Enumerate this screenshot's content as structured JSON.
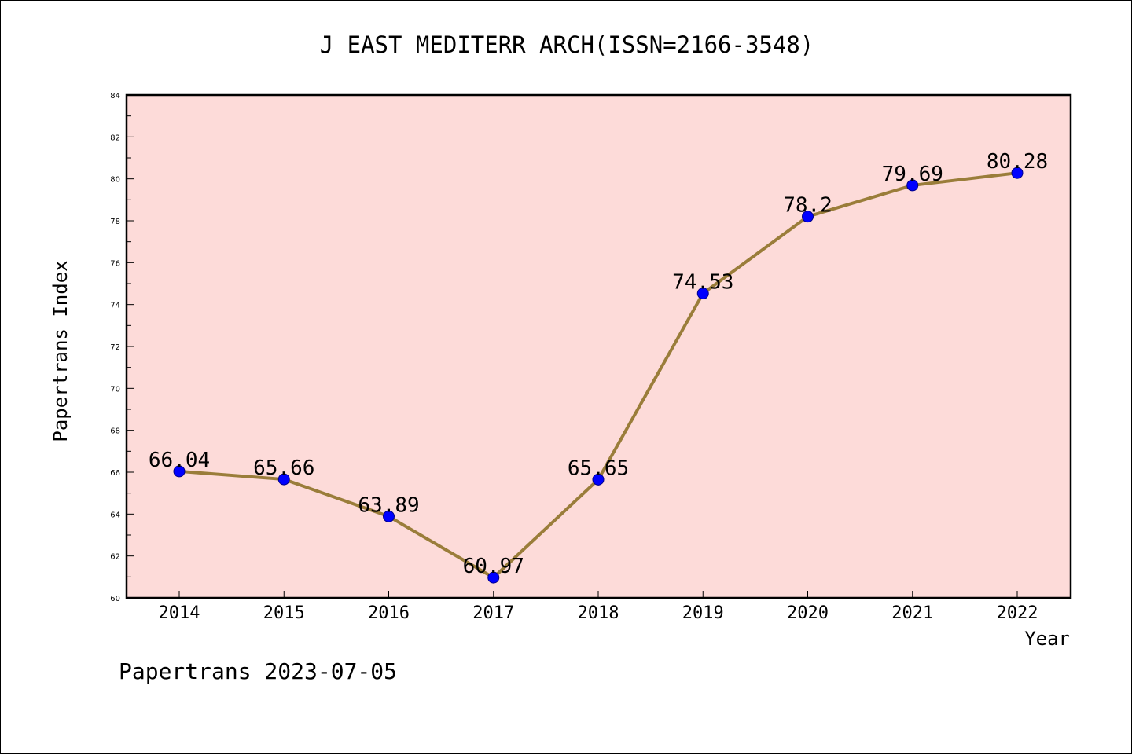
{
  "chart_data": {
    "type": "line",
    "title": "J EAST MEDITERR ARCH(ISSN=2166-3548)",
    "xlabel": "Year",
    "ylabel": "Papertrans Index",
    "categories": [
      "2014",
      "2015",
      "2016",
      "2017",
      "2018",
      "2019",
      "2020",
      "2021",
      "2022"
    ],
    "values": [
      66.04,
      65.66,
      63.89,
      60.97,
      65.65,
      74.53,
      78.2,
      79.69,
      80.28
    ],
    "value_labels": [
      "66.04",
      "65.66",
      "63.89",
      "60.97",
      "65.65",
      "74.53",
      "78.2",
      "79.69",
      "80.28"
    ],
    "ylim": [
      60,
      84
    ],
    "yticks": [
      "60",
      "62",
      "64",
      "66",
      "68",
      "70",
      "72",
      "74",
      "76",
      "78",
      "80",
      "82",
      "84"
    ],
    "grid": false,
    "legend": "none",
    "colors": {
      "plot_background": "#fddbd9",
      "line": "#9a7d3a",
      "marker": "#0000ff"
    }
  },
  "footer": {
    "text": "Papertrans 2023-07-05"
  }
}
